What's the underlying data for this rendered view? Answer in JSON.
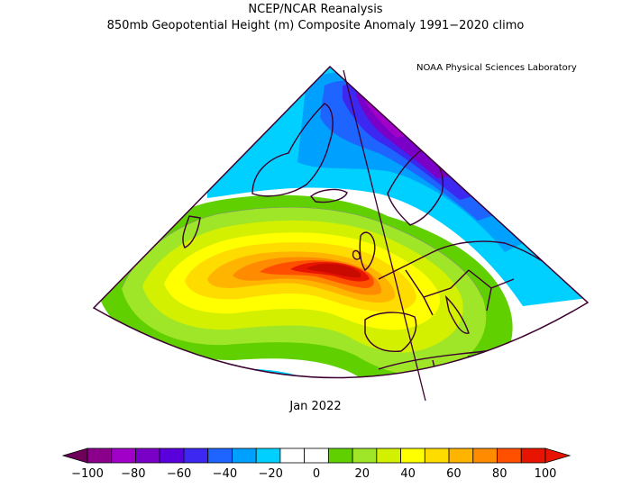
{
  "header": {
    "title": "NCEP/NCAR Reanalysis",
    "subtitle": "850mb Geopotential Height (m) Composite Anomaly 1991−2020 climo",
    "credit": "NOAA Physical Sciences Laboratory"
  },
  "map": {
    "period": "Jan 2022",
    "field": "850mb Geopotential Height (m) Composite Anomaly",
    "units": "m",
    "regions": [
      "North Atlantic",
      "Greenland",
      "Europe",
      "North Africa"
    ]
  },
  "colorbar": {
    "ticks": [
      "−100",
      "−80",
      "−60",
      "−40",
      "−20",
      "0",
      "20",
      "40",
      "60",
      "80",
      "100"
    ],
    "colors": [
      "#8b008b",
      "#a000c8",
      "#7a00c8",
      "#5a00dc",
      "#3c28f0",
      "#1e64ff",
      "#00a0ff",
      "#00d0ff",
      "#ffffff",
      "#ffffff",
      "#60d000",
      "#a0e628",
      "#d2f000",
      "#ffff00",
      "#ffdc00",
      "#ffb400",
      "#ff8c00",
      "#ff5000",
      "#e61400"
    ]
  }
}
